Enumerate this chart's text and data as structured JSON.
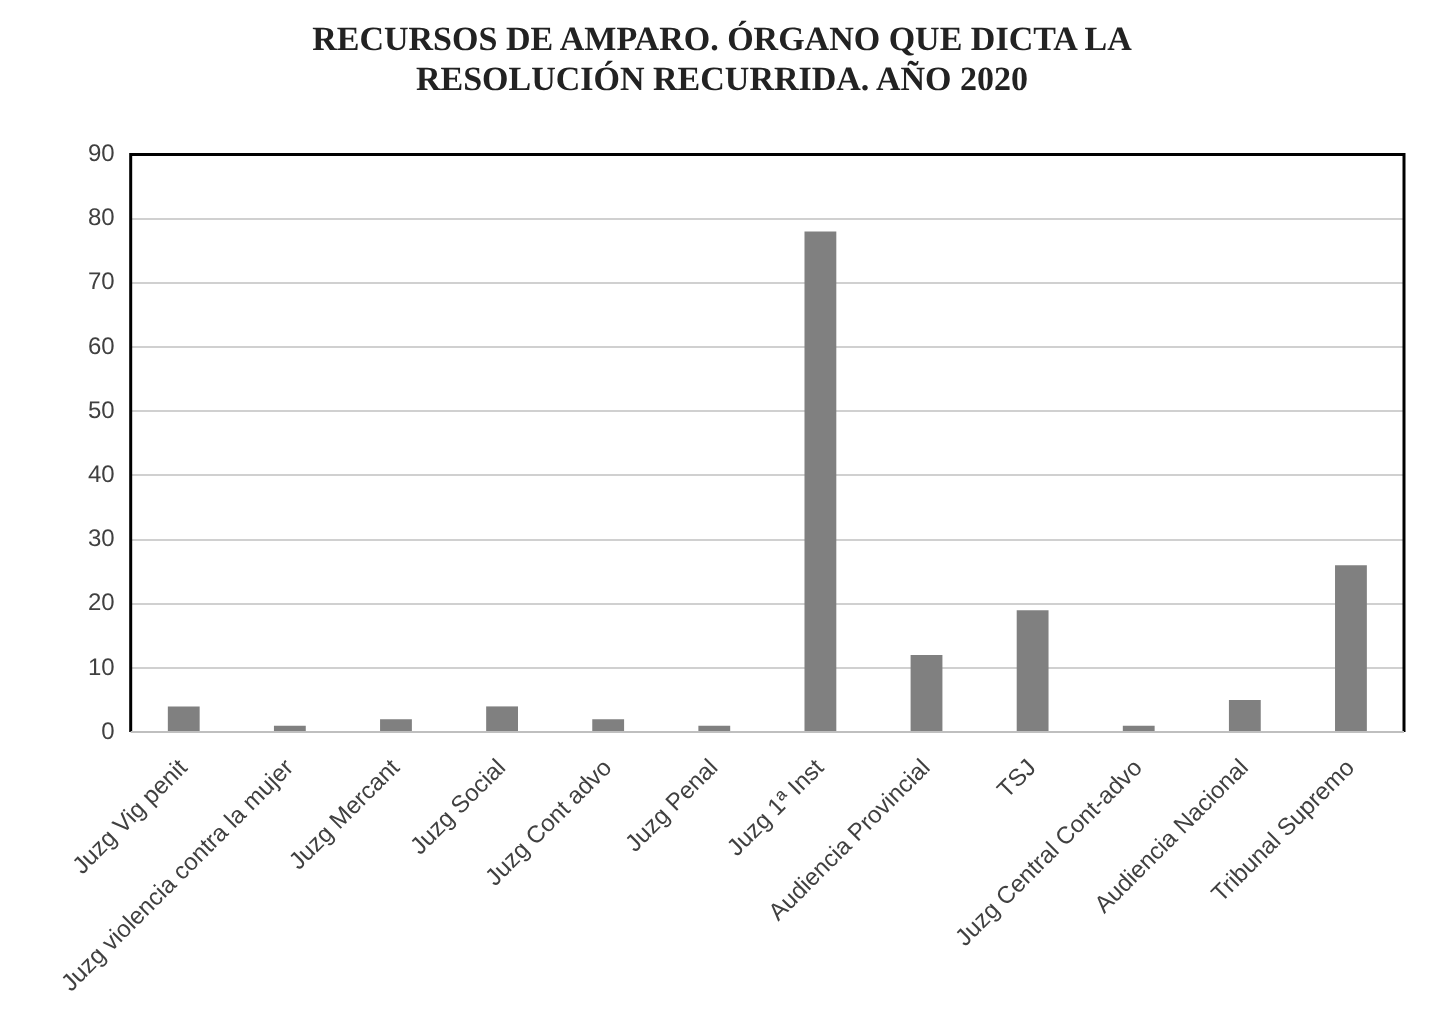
{
  "chart_data": {
    "type": "bar",
    "title": "RECURSOS DE AMPARO. ÓRGANO QUE DICTA LA RESOLUCIÓN RECURRIDA. AÑO 2020",
    "categories": [
      "Juzg Vig penit",
      "Juzg violencia contra la mujer",
      "Juzg Mercant",
      "Juzg Social",
      "Juzg Cont advo",
      "Juzg Penal",
      "Juzg 1ª Inst",
      "Audiencia Provincial",
      "TSJ",
      "Juzg Central Cont-advo",
      "Audiencia Nacional",
      "Tribunal Supremo"
    ],
    "values": [
      4,
      1,
      2,
      4,
      2,
      1,
      78,
      12,
      19,
      1,
      5,
      26
    ],
    "color": "#808080",
    "ylim": [
      0,
      90
    ],
    "yticks": [
      0,
      10,
      20,
      30,
      40,
      50,
      60,
      70,
      80,
      90
    ],
    "grid": "y"
  }
}
